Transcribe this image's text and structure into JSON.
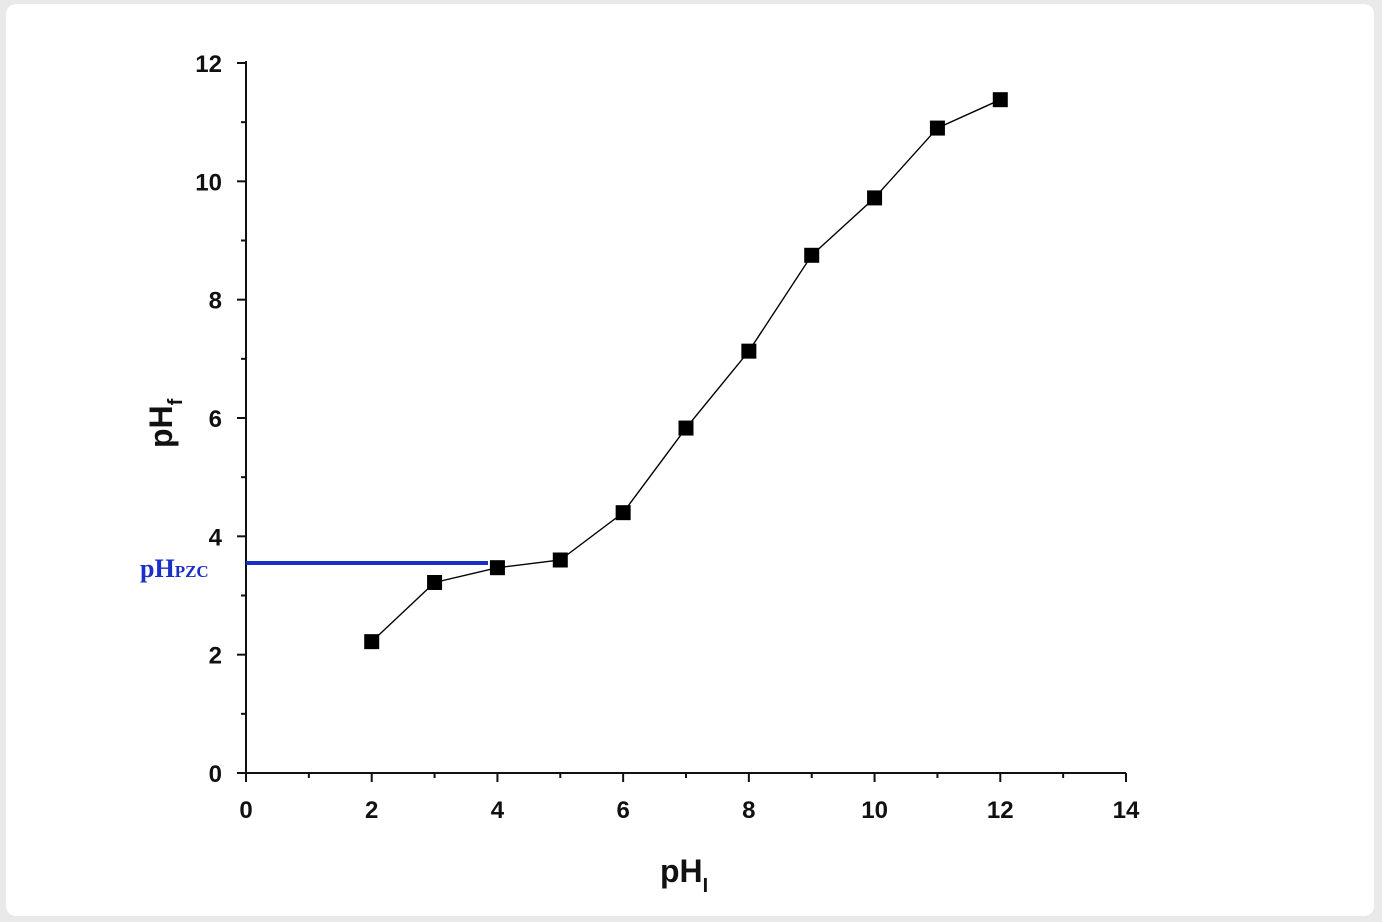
{
  "chart_data": {
    "type": "line",
    "series": [
      {
        "marker": "square",
        "color": "#000000",
        "x": [
          2,
          3,
          4,
          5,
          6,
          7,
          8,
          9,
          10,
          11,
          12
        ],
        "y": [
          2.22,
          3.22,
          3.47,
          3.6,
          4.4,
          5.83,
          7.13,
          8.75,
          9.72,
          10.9,
          11.38
        ]
      }
    ],
    "xlabel": "pH",
    "xlabel_sub": "I",
    "ylabel": "pH",
    "ylabel_sub": "f",
    "xlim": [
      0,
      14
    ],
    "ylim": [
      0,
      12
    ],
    "x_ticks": [
      "0",
      "2",
      "4",
      "6",
      "8",
      "10",
      "12",
      "14"
    ],
    "y_ticks": [
      "0",
      "2",
      "4",
      "6",
      "8",
      "10",
      "12"
    ],
    "grid": false,
    "annotation": {
      "label": "pH",
      "label_sub": "PZC",
      "y": 3.55,
      "x_end": 3.85,
      "color": "#1a2fc8"
    }
  }
}
